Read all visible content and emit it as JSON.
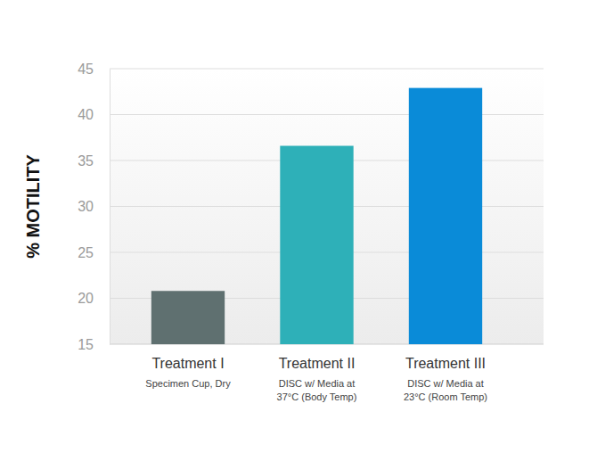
{
  "chart_data": {
    "type": "bar",
    "ylabel": "% MOTILITY",
    "categories": [
      "Treatment I",
      "Treatment II",
      "Treatment III"
    ],
    "category_notes": [
      [
        "Specimen Cup, Dry"
      ],
      [
        "DISC w/ Media at",
        "37°C (Body Temp)"
      ],
      [
        "DISC w/ Media at",
        "23°C (Room Temp)"
      ]
    ],
    "values": [
      20.8,
      36.6,
      42.9
    ],
    "colors": [
      "#5f7070",
      "#2eb0b8",
      "#0a8bd8"
    ],
    "ylim": [
      15,
      45
    ],
    "yticks": [
      15,
      20,
      25,
      30,
      35,
      40,
      45
    ],
    "grid": true
  }
}
